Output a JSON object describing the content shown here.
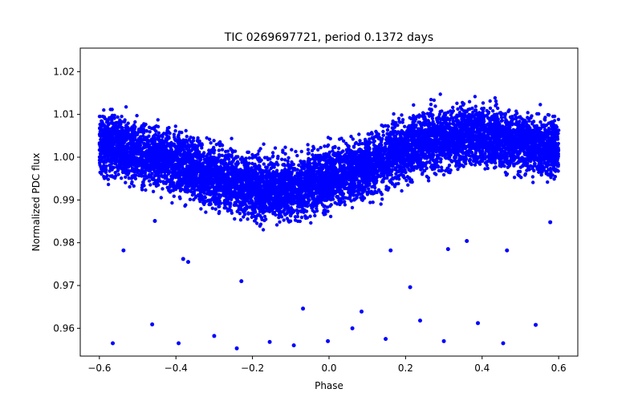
{
  "chart_data": {
    "type": "scatter",
    "title": "TIC 0269697721, period 0.1372 days",
    "xlabel": "Phase",
    "ylabel": "Normalized PDC flux",
    "xlim": [
      -0.65,
      0.65
    ],
    "ylim": [
      0.9535,
      1.0255
    ],
    "xticks": [
      -0.6,
      -0.4,
      -0.2,
      0.0,
      0.2,
      0.4,
      0.6
    ],
    "xtick_labels": [
      "−0.6",
      "−0.4",
      "−0.2",
      "0.0",
      "0.2",
      "0.4",
      "0.6"
    ],
    "yticks": [
      0.96,
      0.97,
      0.98,
      0.99,
      1.0,
      1.01,
      1.02
    ],
    "ytick_labels": [
      "0.96",
      "0.97",
      "0.98",
      "0.99",
      "1.00",
      "1.01",
      "1.02"
    ],
    "grid": false,
    "marker_color": "#0000ff",
    "series": [
      {
        "name": "PDC flux",
        "trend": {
          "phase": [
            -0.6,
            -0.5,
            -0.4,
            -0.3,
            -0.2,
            -0.1,
            0.0,
            0.1,
            0.2,
            0.3,
            0.4,
            0.5,
            0.6
          ],
          "median_flux": [
            1.0035,
            1.001,
            0.9985,
            0.9955,
            0.993,
            0.9925,
            0.995,
            0.998,
            1.002,
            1.0045,
            1.005,
            1.0035,
            1.0015
          ],
          "spread": 0.0075
        },
        "outliers": [
          {
            "x": -0.565,
            "y": 0.9565
          },
          {
            "x": -0.537,
            "y": 0.9782
          },
          {
            "x": -0.462,
            "y": 0.9609
          },
          {
            "x": -0.455,
            "y": 0.9851
          },
          {
            "x": -0.393,
            "y": 0.9565
          },
          {
            "x": -0.381,
            "y": 0.9762
          },
          {
            "x": -0.368,
            "y": 0.9755
          },
          {
            "x": -0.3,
            "y": 0.9582
          },
          {
            "x": -0.241,
            "y": 0.9553
          },
          {
            "x": -0.229,
            "y": 0.971
          },
          {
            "x": -0.155,
            "y": 0.9568
          },
          {
            "x": -0.092,
            "y": 0.956
          },
          {
            "x": -0.068,
            "y": 0.9646
          },
          {
            "x": -0.003,
            "y": 0.957
          },
          {
            "x": 0.061,
            "y": 0.96
          },
          {
            "x": 0.085,
            "y": 0.9639
          },
          {
            "x": 0.148,
            "y": 0.9575
          },
          {
            "x": 0.161,
            "y": 0.9782
          },
          {
            "x": 0.212,
            "y": 0.9696
          },
          {
            "x": 0.238,
            "y": 0.9618
          },
          {
            "x": 0.3,
            "y": 0.957
          },
          {
            "x": 0.311,
            "y": 0.9785
          },
          {
            "x": 0.36,
            "y": 0.9804
          },
          {
            "x": 0.389,
            "y": 0.9612
          },
          {
            "x": 0.455,
            "y": 0.9565
          },
          {
            "x": 0.465,
            "y": 0.9782
          },
          {
            "x": 0.54,
            "y": 0.9608
          },
          {
            "x": 0.578,
            "y": 0.9848
          }
        ],
        "seed_points": 9000
      }
    ]
  }
}
